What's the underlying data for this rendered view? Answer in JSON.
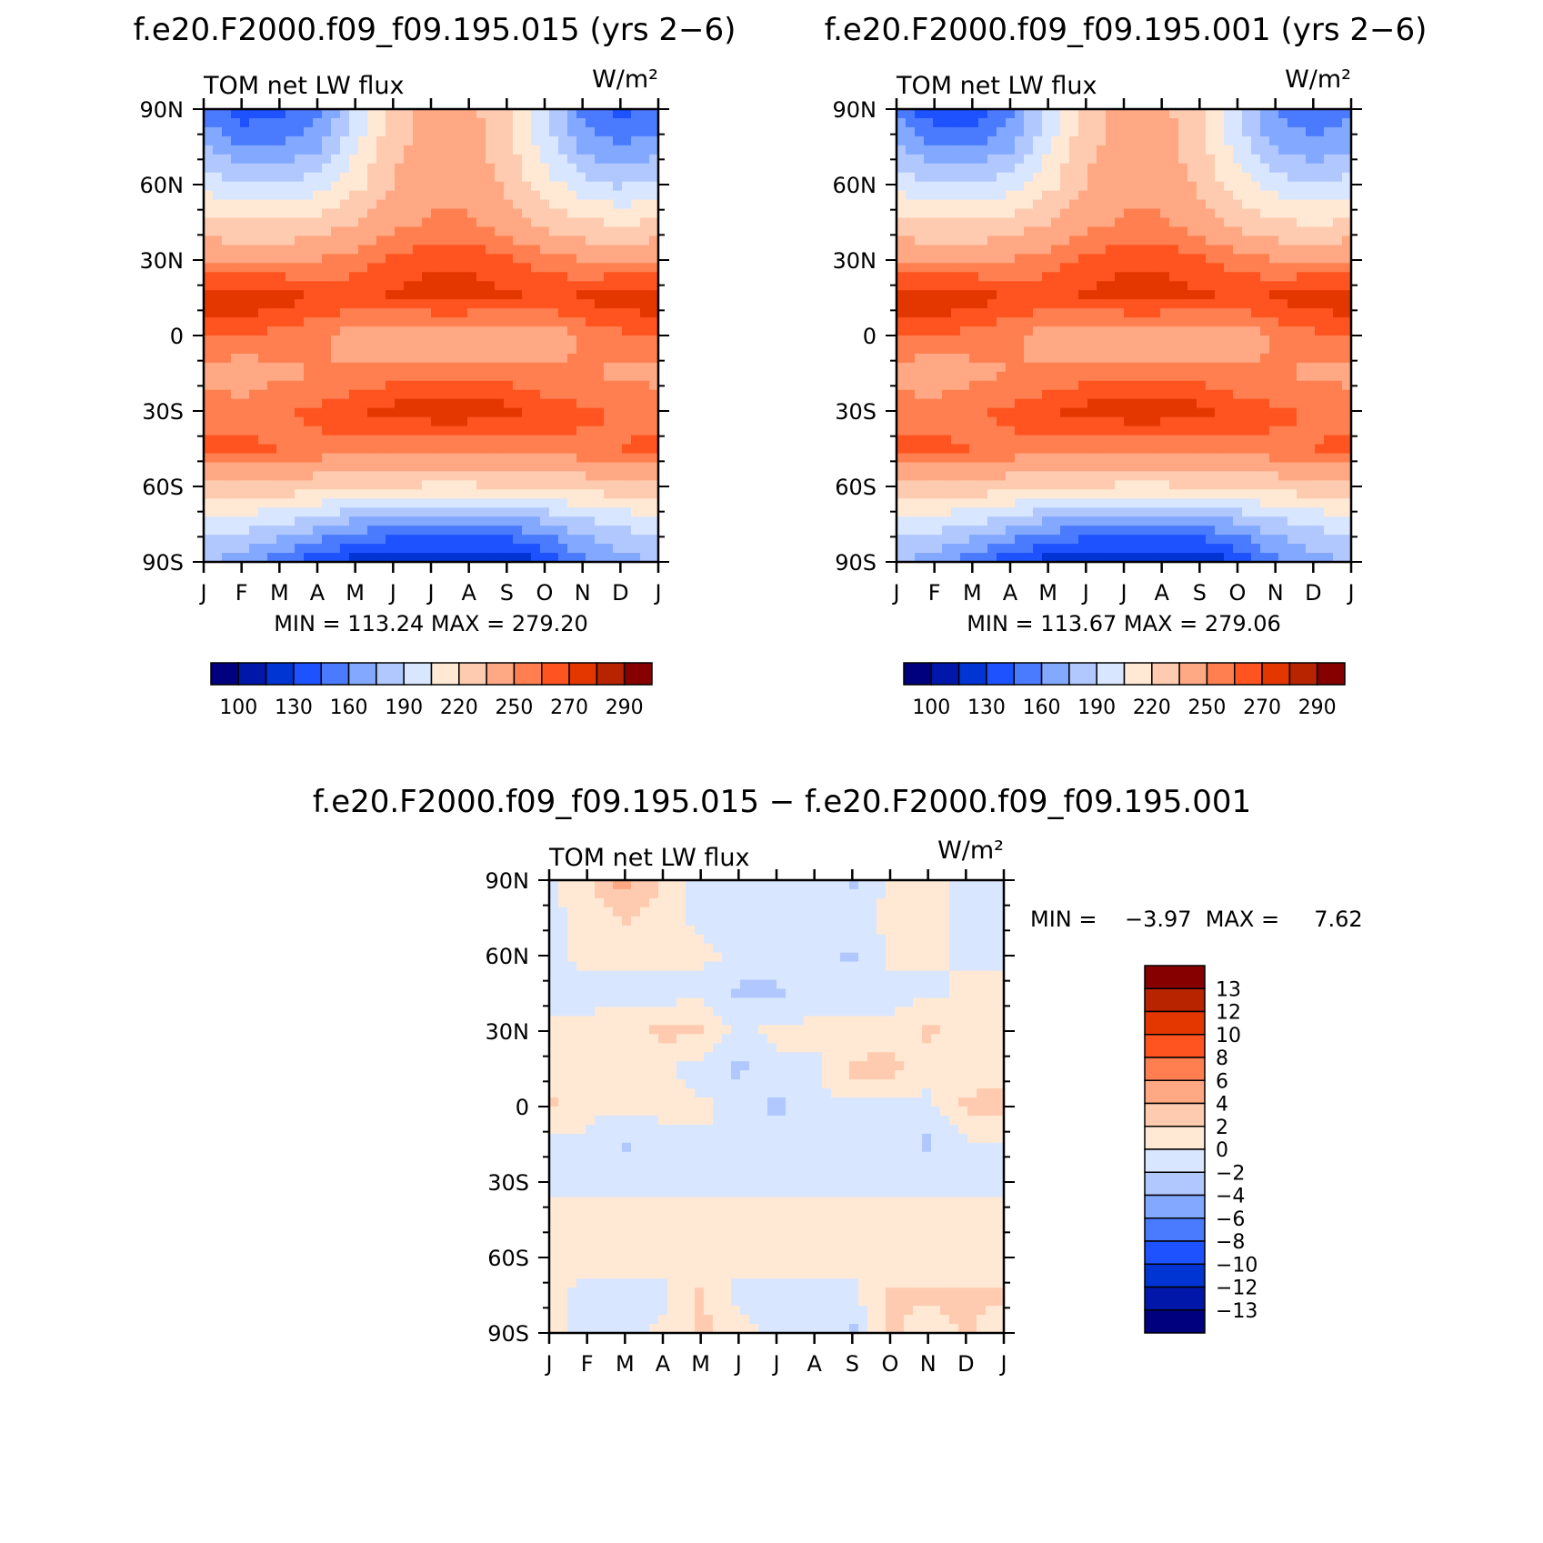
{
  "chart_data": [
    {
      "type": "heatmap",
      "title": "f.e20.F2000.f09_f09.195.015 (yrs 2−6)",
      "left_label": "TOM net LW flux",
      "units": "W/m²",
      "x_tick_labels": [
        "J",
        "F",
        "M",
        "A",
        "M",
        "J",
        "J",
        "A",
        "S",
        "O",
        "N",
        "D",
        "J"
      ],
      "y_tick_labels": [
        "90N",
        "60N",
        "30N",
        "0",
        "30S",
        "60S",
        "90S"
      ],
      "xlim": [
        0,
        12
      ],
      "ylim": [
        -90,
        90
      ],
      "min_max_text": "MIN = 113.24  MAX = 279.20",
      "colorbar_labels": [
        "100",
        "130",
        "160",
        "190",
        "220",
        "250",
        "270",
        "290"
      ],
      "colors": [
        "#00007f",
        "#0017a9",
        "#0035d4",
        "#1f52ff",
        "#4a7bff",
        "#82a8ff",
        "#b1c8ff",
        "#d8e6ff",
        "#ffe9d4",
        "#ffcbb0",
        "#ffa883",
        "#ff7f50",
        "#ff5320",
        "#e43700",
        "#b82300",
        "#870000"
      ],
      "levels": [
        100,
        115,
        130,
        145,
        160,
        175,
        190,
        205,
        220,
        235,
        250,
        260,
        270,
        280,
        290
      ],
      "grid": {
        "rows": [
          [
            153,
            135,
            138,
            155,
            193,
            224,
            242,
            240,
            222,
            192,
            157,
            140,
            150
          ],
          [
            175,
            162,
            160,
            172,
            203,
            230,
            244,
            243,
            226,
            198,
            170,
            160,
            168
          ],
          [
            200,
            190,
            190,
            200,
            215,
            236,
            247,
            246,
            232,
            212,
            196,
            188,
            195
          ],
          [
            225,
            220,
            220,
            225,
            235,
            245,
            252,
            252,
            242,
            230,
            222,
            218,
            222
          ],
          [
            250,
            248,
            248,
            250,
            255,
            262,
            268,
            268,
            262,
            255,
            250,
            248,
            250
          ],
          [
            278,
            279,
            276,
            268,
            268,
            272,
            276,
            276,
            272,
            268,
            272,
            276,
            278
          ],
          [
            262,
            260,
            256,
            252,
            244,
            238,
            236,
            236,
            238,
            242,
            252,
            258,
            262
          ],
          [
            246,
            241,
            248,
            250,
            252,
            254,
            256,
            256,
            254,
            252,
            250,
            248,
            246
          ],
          [
            256,
            256,
            258,
            262,
            268,
            274,
            277,
            277,
            274,
            266,
            262,
            259,
            256
          ],
          [
            262,
            262,
            260,
            258,
            256,
            254,
            252,
            252,
            254,
            256,
            258,
            260,
            262
          ],
          [
            232,
            232,
            230,
            226,
            222,
            220,
            218,
            218,
            220,
            222,
            226,
            230,
            232
          ],
          [
            198,
            195,
            190,
            180,
            170,
            162,
            160,
            160,
            162,
            172,
            185,
            192,
            198
          ],
          [
            176,
            168,
            150,
            135,
            123,
            116,
            114,
            114,
            116,
            130,
            155,
            168,
            176
          ]
        ]
      }
    },
    {
      "type": "heatmap",
      "title": "f.e20.F2000.f09_f09.195.001 (yrs 2−6)",
      "left_label": "TOM net LW flux",
      "units": "W/m²",
      "x_tick_labels": [
        "J",
        "F",
        "M",
        "A",
        "M",
        "J",
        "J",
        "A",
        "S",
        "O",
        "N",
        "D",
        "J"
      ],
      "y_tick_labels": [
        "90N",
        "60N",
        "30N",
        "0",
        "30S",
        "60S",
        "90S"
      ],
      "xlim": [
        0,
        12
      ],
      "ylim": [
        -90,
        90
      ],
      "min_max_text": "MIN = 113.67  MAX = 279.06",
      "colorbar_labels": [
        "100",
        "130",
        "160",
        "190",
        "220",
        "250",
        "270",
        "290"
      ],
      "colors": [
        "#00007f",
        "#0017a9",
        "#0035d4",
        "#1f52ff",
        "#4a7bff",
        "#82a8ff",
        "#b1c8ff",
        "#d8e6ff",
        "#ffe9d4",
        "#ffcbb0",
        "#ffa883",
        "#ff7f50",
        "#ff5320",
        "#e43700",
        "#b82300",
        "#870000"
      ],
      "levels": [
        100,
        115,
        130,
        145,
        160,
        175,
        190,
        205,
        220,
        235,
        250,
        260,
        270,
        280,
        290
      ],
      "grid": {
        "rows": [
          [
            155,
            133,
            136,
            156,
            193,
            225,
            242,
            240,
            222,
            192,
            158,
            148,
            155
          ],
          [
            176,
            161,
            159,
            172,
            203,
            230,
            244,
            243,
            226,
            198,
            172,
            166,
            172
          ],
          [
            200,
            190,
            190,
            200,
            215,
            236,
            247,
            246,
            232,
            212,
            198,
            190,
            196
          ],
          [
            225,
            220,
            220,
            225,
            235,
            245,
            252,
            252,
            242,
            230,
            222,
            218,
            222
          ],
          [
            250,
            248,
            248,
            250,
            255,
            262,
            268,
            268,
            262,
            255,
            250,
            248,
            250
          ],
          [
            278,
            279,
            276,
            268,
            268,
            272,
            276,
            276,
            272,
            268,
            272,
            276,
            278
          ],
          [
            262,
            260,
            256,
            252,
            244,
            238,
            236,
            236,
            238,
            242,
            252,
            258,
            262
          ],
          [
            244,
            240,
            246,
            250,
            252,
            254,
            256,
            256,
            254,
            252,
            250,
            248,
            246
          ],
          [
            256,
            256,
            258,
            262,
            268,
            274,
            277,
            277,
            274,
            266,
            262,
            259,
            256
          ],
          [
            262,
            262,
            260,
            258,
            256,
            254,
            252,
            252,
            254,
            256,
            258,
            260,
            262
          ],
          [
            232,
            232,
            230,
            226,
            222,
            220,
            218,
            218,
            220,
            222,
            226,
            230,
            232
          ],
          [
            198,
            195,
            190,
            180,
            170,
            162,
            160,
            160,
            162,
            172,
            185,
            192,
            198
          ],
          [
            176,
            168,
            150,
            135,
            123,
            116,
            114,
            114,
            116,
            130,
            155,
            168,
            176
          ]
        ]
      }
    },
    {
      "type": "heatmap",
      "title": "f.e20.F2000.f09_f09.195.015 − f.e20.F2000.f09_f09.195.001",
      "left_label": "TOM net LW flux",
      "units": "W/m²",
      "x_tick_labels": [
        "J",
        "F",
        "M",
        "A",
        "M",
        "J",
        "J",
        "A",
        "S",
        "O",
        "N",
        "D",
        "J"
      ],
      "y_tick_labels": [
        "90N",
        "60N",
        "30N",
        "0",
        "30S",
        "60S",
        "90S"
      ],
      "xlim": [
        0,
        12
      ],
      "ylim": [
        -90,
        90
      ],
      "min_max_text": "MIN =    −3.97  MAX =     7.62",
      "colorbar_labels": [
        "13",
        "12",
        "10",
        "8",
        "6",
        "4",
        "2",
        "0",
        "−2",
        "−4",
        "−6",
        "−8",
        "−10",
        "−12",
        "−13"
      ],
      "colors": [
        "#00007f",
        "#0017a9",
        "#0035d4",
        "#1f52ff",
        "#4a7bff",
        "#82a8ff",
        "#b1c8ff",
        "#d8e6ff",
        "#ffe9d4",
        "#ffcbb0",
        "#ffa883",
        "#ff7f50",
        "#ff5320",
        "#e43700",
        "#b82300",
        "#870000"
      ],
      "levels": [
        -13,
        -12,
        -10,
        -8,
        -6,
        -4,
        -2,
        0,
        2,
        4,
        6,
        8,
        10,
        12,
        13
      ],
      "grid": {
        "rows": [
          [
            -0.5,
            1.5,
            5.0,
            2.0,
            -1.0,
            -1.0,
            -0.5,
            -0.5,
            -2.5,
            0.5,
            0.5,
            -0.5,
            -2.0
          ],
          [
            -0.5,
            0.5,
            2.5,
            0.5,
            -0.5,
            -0.5,
            -0.5,
            -0.5,
            -0.5,
            0.5,
            1.0,
            -0.5,
            -1.0
          ],
          [
            -0.5,
            0.5,
            0.5,
            1.0,
            0.5,
            -0.5,
            -1.0,
            -0.5,
            -2.5,
            0.5,
            0.5,
            -0.5,
            -0.5
          ],
          [
            -0.5,
            -0.5,
            -0.5,
            -1.0,
            -0.5,
            -2.5,
            -2.5,
            -1.0,
            -1.0,
            -0.5,
            -0.5,
            0.5,
            0.5
          ],
          [
            0.5,
            0.5,
            1.0,
            2.5,
            2.5,
            -0.5,
            0.5,
            0.5,
            0.5,
            0.5,
            2.5,
            0.5,
            0.5
          ],
          [
            0.5,
            0.5,
            0.5,
            0.5,
            -1.0,
            -2.5,
            -0.5,
            -0.5,
            2.5,
            3.0,
            0.5,
            0.5,
            0.5
          ],
          [
            2.5,
            0.5,
            0.5,
            0.5,
            0.5,
            -0.5,
            -2.5,
            -0.5,
            -0.5,
            -0.5,
            -0.5,
            2.5,
            3.5
          ],
          [
            -0.5,
            -0.5,
            -2.5,
            -0.5,
            -0.5,
            -0.5,
            -0.5,
            -0.5,
            -0.5,
            -0.5,
            -2.5,
            -0.5,
            -0.5
          ],
          [
            -0.5,
            -0.5,
            -0.5,
            -0.5,
            -0.5,
            -0.5,
            -0.5,
            -0.5,
            -0.5,
            -0.5,
            -0.5,
            -0.5,
            -0.5
          ],
          [
            0.5,
            0.5,
            0.5,
            0.5,
            0.5,
            0.5,
            0.5,
            0.5,
            0.5,
            0.5,
            0.5,
            0.5,
            0.5
          ],
          [
            0.5,
            0.5,
            0.5,
            0.5,
            0.5,
            0.5,
            0.5,
            0.5,
            0.5,
            0.5,
            0.5,
            0.5,
            0.5
          ],
          [
            0.5,
            -0.5,
            -0.5,
            -0.5,
            2.5,
            -0.5,
            -0.5,
            -0.5,
            -0.5,
            2.5,
            2.5,
            2.5,
            2.5
          ],
          [
            0.5,
            -0.5,
            -0.5,
            0.5,
            2.5,
            0.5,
            -0.5,
            -0.5,
            -2.5,
            2.5,
            0.5,
            2.5,
            0.5
          ]
        ]
      }
    }
  ]
}
